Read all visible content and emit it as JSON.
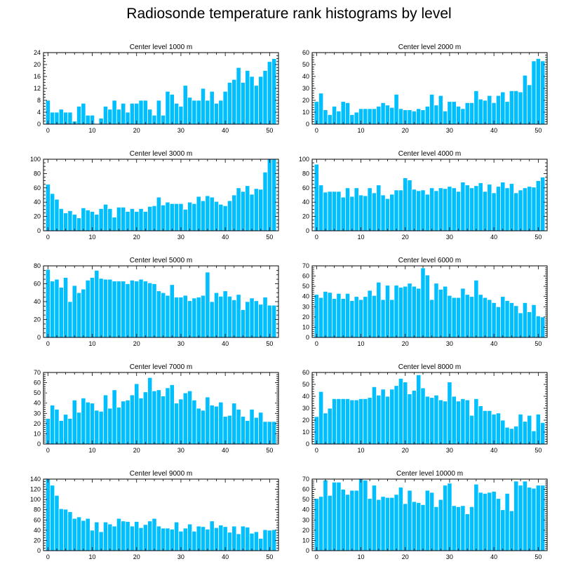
{
  "title": "Radiosonde temperature rank histograms by level",
  "colors": {
    "bar": "#00BFFF",
    "bar_edge": "#ffffff",
    "axis": "#000000",
    "background": "#ffffff"
  },
  "chart_data": [
    {
      "type": "bar",
      "title": "Center level 1000 m",
      "xlim": [
        -1,
        52
      ],
      "ylim": [
        0,
        24
      ],
      "xticks": [
        0,
        10,
        20,
        30,
        40,
        50
      ],
      "yticks": [
        0,
        4,
        8,
        12,
        16,
        20,
        24
      ],
      "x": [
        0,
        1,
        2,
        3,
        4,
        5,
        6,
        7,
        8,
        9,
        10,
        11,
        12,
        13,
        14,
        15,
        16,
        17,
        18,
        19,
        20,
        21,
        22,
        23,
        24,
        25,
        26,
        27,
        28,
        29,
        30,
        31,
        32,
        33,
        34,
        35,
        36,
        37,
        38,
        39,
        40,
        41,
        42,
        43,
        44,
        45,
        46,
        47,
        48,
        49,
        50,
        51
      ],
      "values": [
        8,
        4,
        4,
        5,
        4,
        4,
        1,
        6,
        7,
        3,
        3,
        0,
        2,
        6,
        5,
        8,
        5,
        7,
        4,
        7,
        7,
        8,
        8,
        5,
        3,
        8,
        3,
        11,
        10,
        7,
        6,
        13,
        9,
        8,
        8,
        12,
        8,
        11,
        7,
        8,
        11,
        14,
        15,
        19,
        14,
        18,
        16,
        13,
        16,
        18,
        21,
        22
      ],
      "xlabel": "",
      "ylabel": ""
    },
    {
      "type": "bar",
      "title": "Center level 2000 m",
      "xlim": [
        -1,
        52
      ],
      "ylim": [
        0,
        60
      ],
      "xticks": [
        0,
        10,
        20,
        30,
        40,
        50
      ],
      "yticks": [
        0,
        10,
        20,
        30,
        40,
        50,
        60
      ],
      "x": [
        0,
        1,
        2,
        3,
        4,
        5,
        6,
        7,
        8,
        9,
        10,
        11,
        12,
        13,
        14,
        15,
        16,
        17,
        18,
        19,
        20,
        21,
        22,
        23,
        24,
        25,
        26,
        27,
        28,
        29,
        30,
        31,
        32,
        33,
        34,
        35,
        36,
        37,
        38,
        39,
        40,
        41,
        42,
        43,
        44,
        45,
        46,
        47,
        48,
        49,
        50,
        51
      ],
      "values": [
        19,
        26,
        12,
        8,
        15,
        11,
        19,
        18,
        8,
        10,
        13,
        13,
        13,
        13,
        15,
        18,
        16,
        14,
        25,
        13,
        12,
        12,
        11,
        13,
        12,
        15,
        25,
        16,
        24,
        11,
        19,
        19,
        15,
        13,
        18,
        18,
        28,
        21,
        20,
        24,
        18,
        24,
        27,
        19,
        28,
        28,
        27,
        41,
        33,
        53,
        55,
        53
      ],
      "xlabel": "",
      "ylabel": ""
    },
    {
      "type": "bar",
      "title": "Center level 3000 m",
      "xlim": [
        -1,
        52
      ],
      "ylim": [
        0,
        100
      ],
      "xticks": [
        0,
        10,
        20,
        30,
        40,
        50
      ],
      "yticks": [
        0,
        20,
        40,
        60,
        80,
        100
      ],
      "x": [
        0,
        1,
        2,
        3,
        4,
        5,
        6,
        7,
        8,
        9,
        10,
        11,
        12,
        13,
        14,
        15,
        16,
        17,
        18,
        19,
        20,
        21,
        22,
        23,
        24,
        25,
        26,
        27,
        28,
        29,
        30,
        31,
        32,
        33,
        34,
        35,
        36,
        37,
        38,
        39,
        40,
        41,
        42,
        43,
        44,
        45,
        46,
        47,
        48,
        49,
        50,
        51
      ],
      "values": [
        65,
        52,
        44,
        31,
        25,
        28,
        23,
        18,
        32,
        29,
        27,
        23,
        31,
        37,
        31,
        19,
        33,
        33,
        27,
        31,
        27,
        31,
        27,
        34,
        35,
        47,
        36,
        40,
        38,
        38,
        38,
        30,
        40,
        38,
        48,
        42,
        49,
        47,
        41,
        37,
        35,
        42,
        50,
        60,
        55,
        63,
        51,
        59,
        58,
        82,
        100,
        100
      ],
      "xlabel": "",
      "ylabel": ""
    },
    {
      "type": "bar",
      "title": "Center level 4000 m",
      "xlim": [
        -1,
        52
      ],
      "ylim": [
        0,
        100
      ],
      "xticks": [
        0,
        10,
        20,
        30,
        40,
        50
      ],
      "yticks": [
        0,
        20,
        40,
        60,
        80,
        100
      ],
      "x": [
        0,
        1,
        2,
        3,
        4,
        5,
        6,
        7,
        8,
        9,
        10,
        11,
        12,
        13,
        14,
        15,
        16,
        17,
        18,
        19,
        20,
        21,
        22,
        23,
        24,
        25,
        26,
        27,
        28,
        29,
        30,
        31,
        32,
        33,
        34,
        35,
        36,
        37,
        38,
        39,
        40,
        41,
        42,
        43,
        44,
        45,
        46,
        47,
        48,
        49,
        50,
        51
      ],
      "values": [
        93,
        64,
        54,
        55,
        55,
        55,
        47,
        60,
        48,
        60,
        50,
        49,
        60,
        53,
        64,
        50,
        45,
        51,
        57,
        57,
        74,
        71,
        58,
        56,
        57,
        51,
        60,
        56,
        60,
        59,
        62,
        60,
        55,
        68,
        64,
        60,
        63,
        67,
        55,
        65,
        53,
        62,
        68,
        60,
        66,
        53,
        57,
        60,
        62,
        61,
        70,
        75
      ],
      "xlabel": "",
      "ylabel": ""
    },
    {
      "type": "bar",
      "title": "Center level 5000 m",
      "xlim": [
        -1,
        52
      ],
      "ylim": [
        0,
        80
      ],
      "xticks": [
        0,
        10,
        20,
        30,
        40,
        50
      ],
      "yticks": [
        0,
        20,
        40,
        60,
        80
      ],
      "x": [
        0,
        1,
        2,
        3,
        4,
        5,
        6,
        7,
        8,
        9,
        10,
        11,
        12,
        13,
        14,
        15,
        16,
        17,
        18,
        19,
        20,
        21,
        22,
        23,
        24,
        25,
        26,
        27,
        28,
        29,
        30,
        31,
        32,
        33,
        34,
        35,
        36,
        37,
        38,
        39,
        40,
        41,
        42,
        43,
        44,
        45,
        46,
        47,
        48,
        49,
        50,
        51
      ],
      "values": [
        76,
        63,
        65,
        56,
        67,
        40,
        58,
        50,
        54,
        64,
        67,
        75,
        66,
        65,
        65,
        63,
        63,
        63,
        60,
        64,
        63,
        65,
        63,
        61,
        60,
        52,
        50,
        47,
        59,
        45,
        45,
        47,
        41,
        44,
        45,
        47,
        73,
        40,
        50,
        46,
        52,
        46,
        42,
        48,
        31,
        40,
        44,
        41,
        37,
        45,
        36,
        36
      ],
      "xlabel": "",
      "ylabel": ""
    },
    {
      "type": "bar",
      "title": "Center level 6000 m",
      "xlim": [
        -1,
        52
      ],
      "ylim": [
        0,
        70
      ],
      "xticks": [
        0,
        10,
        20,
        30,
        40,
        50
      ],
      "yticks": [
        0,
        10,
        20,
        30,
        40,
        50,
        60,
        70
      ],
      "x": [
        0,
        1,
        2,
        3,
        4,
        5,
        6,
        7,
        8,
        9,
        10,
        11,
        12,
        13,
        14,
        15,
        16,
        17,
        18,
        19,
        20,
        21,
        22,
        23,
        24,
        25,
        26,
        27,
        28,
        29,
        30,
        31,
        32,
        33,
        34,
        35,
        36,
        37,
        38,
        39,
        40,
        41,
        42,
        43,
        44,
        45,
        46,
        47,
        48,
        49,
        50,
        51
      ],
      "values": [
        42,
        39,
        45,
        44,
        38,
        43,
        38,
        43,
        36,
        40,
        37,
        40,
        46,
        41,
        54,
        37,
        51,
        37,
        51,
        49,
        50,
        53,
        50,
        48,
        68,
        61,
        37,
        53,
        47,
        50,
        41,
        39,
        39,
        48,
        42,
        40,
        56,
        42,
        39,
        37,
        34,
        30,
        40,
        36,
        34,
        31,
        24,
        34,
        25,
        32,
        21,
        20
      ],
      "xlabel": "",
      "ylabel": ""
    },
    {
      "type": "bar",
      "title": "Center level 7000 m",
      "xlim": [
        -1,
        52
      ],
      "ylim": [
        0,
        70
      ],
      "xticks": [
        0,
        10,
        20,
        30,
        40,
        50
      ],
      "yticks": [
        0,
        10,
        20,
        30,
        40,
        50,
        60,
        70
      ],
      "x": [
        0,
        1,
        2,
        3,
        4,
        5,
        6,
        7,
        8,
        9,
        10,
        11,
        12,
        13,
        14,
        15,
        16,
        17,
        18,
        19,
        20,
        21,
        22,
        23,
        24,
        25,
        26,
        27,
        28,
        29,
        30,
        31,
        32,
        33,
        34,
        35,
        36,
        37,
        38,
        39,
        40,
        41,
        42,
        43,
        44,
        45,
        46,
        47,
        48,
        49,
        50,
        51
      ],
      "values": [
        25,
        38,
        34,
        23,
        29,
        25,
        43,
        31,
        45,
        41,
        40,
        33,
        32,
        48,
        35,
        53,
        36,
        42,
        43,
        48,
        59,
        45,
        51,
        65,
        52,
        53,
        47,
        55,
        58,
        40,
        44,
        50,
        52,
        43,
        35,
        33,
        46,
        38,
        37,
        41,
        27,
        28,
        40,
        34,
        27,
        23,
        34,
        26,
        31,
        22,
        22,
        22
      ],
      "xlabel": "",
      "ylabel": ""
    },
    {
      "type": "bar",
      "title": "Center level 8000 m",
      "xlim": [
        -1,
        52
      ],
      "ylim": [
        0,
        60
      ],
      "xticks": [
        0,
        10,
        20,
        30,
        40,
        50
      ],
      "yticks": [
        0,
        10,
        20,
        30,
        40,
        50,
        60
      ],
      "x": [
        0,
        1,
        2,
        3,
        4,
        5,
        6,
        7,
        8,
        9,
        10,
        11,
        12,
        13,
        14,
        15,
        16,
        17,
        18,
        19,
        20,
        21,
        22,
        23,
        24,
        25,
        26,
        27,
        28,
        29,
        30,
        31,
        32,
        33,
        34,
        35,
        36,
        37,
        38,
        39,
        40,
        41,
        42,
        43,
        44,
        45,
        46,
        47,
        48,
        49,
        50,
        51
      ],
      "values": [
        23,
        44,
        26,
        30,
        38,
        38,
        38,
        38,
        37,
        37,
        38,
        38,
        39,
        48,
        41,
        46,
        40,
        46,
        49,
        55,
        52,
        42,
        45,
        58,
        47,
        40,
        39,
        41,
        37,
        36,
        52,
        40,
        36,
        38,
        37,
        24,
        38,
        32,
        28,
        28,
        25,
        26,
        20,
        14,
        13,
        15,
        25,
        19,
        24,
        11,
        25,
        18
      ],
      "xlabel": "",
      "ylabel": ""
    },
    {
      "type": "bar",
      "title": "Center level 9000 m",
      "xlim": [
        -1,
        52
      ],
      "ylim": [
        0,
        140
      ],
      "xticks": [
        0,
        10,
        20,
        30,
        40,
        50
      ],
      "yticks": [
        0,
        20,
        40,
        60,
        80,
        100,
        120,
        140
      ],
      "x": [
        0,
        1,
        2,
        3,
        4,
        5,
        6,
        7,
        8,
        9,
        10,
        11,
        12,
        13,
        14,
        15,
        16,
        17,
        18,
        19,
        20,
        21,
        22,
        23,
        24,
        25,
        26,
        27,
        28,
        29,
        30,
        31,
        32,
        33,
        34,
        35,
        36,
        37,
        38,
        39,
        40,
        41,
        42,
        43,
        44,
        45,
        46,
        47,
        48,
        49,
        50,
        51
      ],
      "values": [
        140,
        128,
        108,
        82,
        81,
        76,
        63,
        66,
        59,
        63,
        40,
        56,
        37,
        56,
        52,
        48,
        63,
        58,
        57,
        48,
        57,
        45,
        51,
        58,
        63,
        48,
        44,
        44,
        42,
        56,
        38,
        44,
        52,
        38,
        48,
        47,
        42,
        58,
        45,
        50,
        47,
        36,
        48,
        33,
        48,
        46,
        34,
        37,
        24,
        41,
        40,
        41
      ],
      "xlabel": "",
      "ylabel": ""
    },
    {
      "type": "bar",
      "title": "Center level 10000 m",
      "xlim": [
        -1,
        52
      ],
      "ylim": [
        0,
        70
      ],
      "xticks": [
        0,
        10,
        20,
        30,
        40,
        50
      ],
      "yticks": [
        0,
        10,
        20,
        30,
        40,
        50,
        60,
        70
      ],
      "x": [
        0,
        1,
        2,
        3,
        4,
        5,
        6,
        7,
        8,
        9,
        10,
        11,
        12,
        13,
        14,
        15,
        16,
        17,
        18,
        19,
        20,
        21,
        22,
        23,
        24,
        25,
        26,
        27,
        28,
        29,
        30,
        31,
        32,
        33,
        34,
        35,
        36,
        37,
        38,
        39,
        40,
        41,
        42,
        43,
        44,
        45,
        46,
        47,
        48,
        49,
        50,
        51
      ],
      "values": [
        51,
        53,
        69,
        54,
        67,
        67,
        60,
        55,
        59,
        59,
        70,
        69,
        51,
        64,
        50,
        53,
        52,
        52,
        55,
        62,
        46,
        59,
        48,
        47,
        45,
        59,
        57,
        43,
        50,
        64,
        66,
        44,
        43,
        44,
        36,
        43,
        65,
        57,
        56,
        57,
        58,
        51,
        40,
        56,
        39,
        68,
        64,
        68,
        62,
        61,
        64,
        64
      ],
      "xlabel": "",
      "ylabel": ""
    }
  ]
}
